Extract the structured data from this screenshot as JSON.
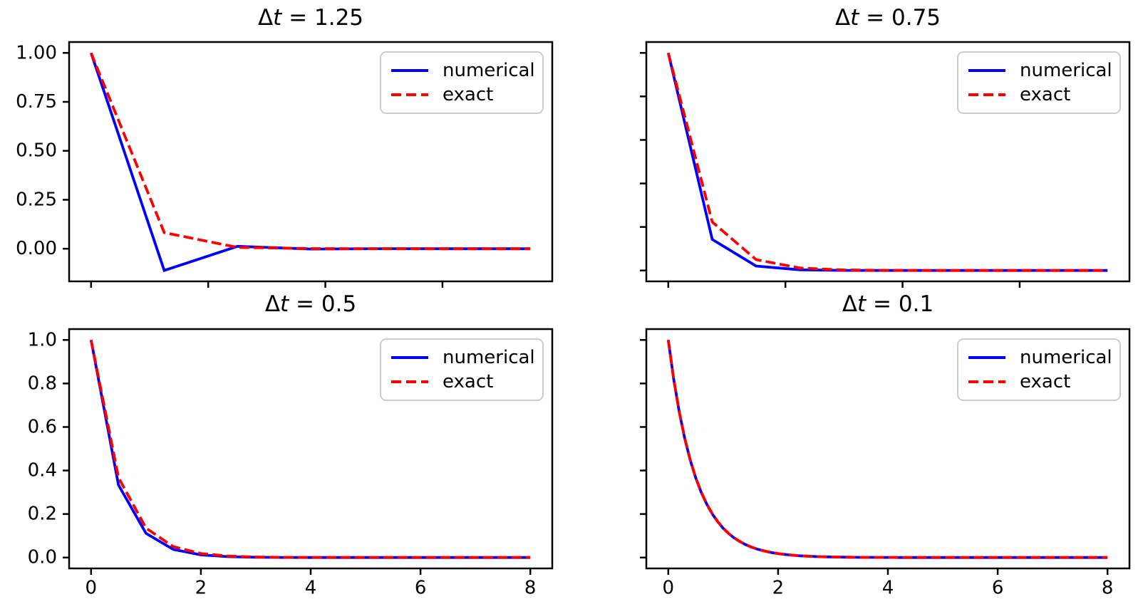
{
  "figure": {
    "background_color": "#ffffff",
    "rows": 2,
    "cols": 2,
    "description": "2x2 grid of line plots comparing a numerical ODE solution to the exact solution for different time steps"
  },
  "palette": {
    "numerical_color": "#0000ff",
    "exact_color": "#ff0000",
    "axis_color": "#000000",
    "legend_border_color": "#cccccc"
  },
  "legend": {
    "position": "upper right",
    "entries": [
      "numerical",
      "exact"
    ]
  },
  "chart_data": [
    {
      "type": "line",
      "id": "dt-1.25",
      "title": "Δt = 1.25",
      "title_delta": "Δ",
      "title_var": "t",
      "title_eq": " = 1.25",
      "dt": 1.25,
      "xlim": [
        -0.375,
        7.875
      ],
      "ylim": [
        -0.1667,
        1.0556
      ],
      "x_ticks": [
        0,
        2,
        4,
        6
      ],
      "x_tick_labels": null,
      "y_ticks": [
        0,
        0.25,
        0.5,
        0.75,
        1.0
      ],
      "y_tick_labels": [
        "0.00",
        "0.25",
        "0.50",
        "0.75",
        "1.00"
      ],
      "grid": false,
      "legend_position": "upper right",
      "t_start": 0,
      "t_step": 1.25,
      "t_end": 7.5,
      "series": [
        {
          "name": "numerical",
          "color": "#0000ff",
          "linestyle": "solid",
          "y": [
            1.0,
            -0.1111,
            0.0123,
            -0.0014,
            0.0002,
            0.0,
            0.0
          ]
        },
        {
          "name": "exact",
          "color": "#ff0000",
          "linestyle": "dashed",
          "y": [
            1.0,
            0.0821,
            0.0067,
            0.0006,
            0.0,
            0.0,
            0.0
          ]
        }
      ]
    },
    {
      "type": "line",
      "id": "dt-0.75",
      "title": "Δt = 0.75",
      "title_delta": "Δ",
      "title_var": "t",
      "title_eq": " = 0.75",
      "dt": 0.75,
      "xlim": [
        -0.375,
        7.875
      ],
      "ylim": [
        -0.05,
        1.05
      ],
      "x_ticks": [
        0,
        2,
        4,
        6
      ],
      "x_tick_labels": null,
      "y_ticks": [
        0,
        0.2,
        0.4,
        0.6,
        0.8,
        1.0
      ],
      "y_tick_labels": null,
      "grid": false,
      "legend_position": "upper right",
      "t_start": 0,
      "t_step": 0.75,
      "t_end": 7.5,
      "series": [
        {
          "name": "numerical",
          "color": "#0000ff",
          "linestyle": "solid",
          "y": [
            1.0,
            0.1429,
            0.0204,
            0.0029,
            0.0004,
            0.0001,
            0.0,
            0.0,
            0.0,
            0.0,
            0.0
          ]
        },
        {
          "name": "exact",
          "color": "#ff0000",
          "linestyle": "dashed",
          "y": [
            1.0,
            0.2231,
            0.0498,
            0.0111,
            0.0025,
            0.0006,
            0.0001,
            0.0,
            0.0,
            0.0,
            0.0
          ]
        }
      ]
    },
    {
      "type": "line",
      "id": "dt-0.5",
      "title": "Δt = 0.5",
      "title_delta": "Δ",
      "title_var": "t",
      "title_eq": " = 0.5",
      "dt": 0.5,
      "xlim": [
        -0.4,
        8.4
      ],
      "ylim": [
        -0.05,
        1.05
      ],
      "x_ticks": [
        0,
        2,
        4,
        6,
        8
      ],
      "x_tick_labels": [
        "0",
        "2",
        "4",
        "6",
        "8"
      ],
      "y_ticks": [
        0,
        0.2,
        0.4,
        0.6,
        0.8,
        1.0
      ],
      "y_tick_labels": [
        "0.0",
        "0.2",
        "0.4",
        "0.6",
        "0.8",
        "1.0"
      ],
      "grid": false,
      "legend_position": "upper right",
      "t_start": 0,
      "t_step": 0.5,
      "t_end": 8.0,
      "series": [
        {
          "name": "numerical",
          "color": "#0000ff",
          "linestyle": "solid",
          "y": [
            1.0,
            0.3333,
            0.1111,
            0.037,
            0.0123,
            0.0041,
            0.0014,
            0.0005,
            0.0002,
            0.0001,
            0.0,
            0.0,
            0.0,
            0.0,
            0.0,
            0.0,
            0.0
          ]
        },
        {
          "name": "exact",
          "color": "#ff0000",
          "linestyle": "dashed",
          "y": [
            1.0,
            0.3679,
            0.1353,
            0.0498,
            0.0183,
            0.0067,
            0.0025,
            0.0009,
            0.0003,
            0.0001,
            0.0,
            0.0,
            0.0,
            0.0,
            0.0,
            0.0,
            0.0
          ]
        }
      ]
    },
    {
      "type": "line",
      "id": "dt-0.1",
      "title": "Δt = 0.1",
      "title_delta": "Δ",
      "title_var": "t",
      "title_eq": " = 0.1",
      "dt": 0.1,
      "xlim": [
        -0.4,
        8.4
      ],
      "ylim": [
        -0.05,
        1.05
      ],
      "x_ticks": [
        0,
        2,
        4,
        6,
        8
      ],
      "x_tick_labels": [
        "0",
        "2",
        "4",
        "6",
        "8"
      ],
      "y_ticks": [
        0,
        0.2,
        0.4,
        0.6,
        0.8,
        1.0
      ],
      "y_tick_labels": null,
      "grid": false,
      "legend_position": "upper right",
      "t_start": 0,
      "t_step": 0.1,
      "t_end": 8.0,
      "series": [
        {
          "name": "numerical",
          "color": "#0000ff",
          "linestyle": "solid",
          "y": [
            1.0,
            0.8182,
            0.6694,
            0.5477,
            0.4481,
            0.3667,
            0.3,
            0.2455,
            0.2008,
            0.1643,
            0.1344,
            0.11,
            0.09,
            0.0736,
            0.0602,
            0.0493,
            0.0403,
            0.033,
            0.027,
            0.0221,
            0.0181,
            0.0148,
            0.0121,
            0.0099,
            0.0081,
            0.0066,
            0.0054,
            0.0044,
            0.0036,
            0.003,
            0.0024,
            0.002,
            0.0016,
            0.0013,
            0.0011,
            0.0009,
            0.0007,
            0.0006,
            0.0005,
            0.0004,
            0.0003,
            0.0003,
            0.0002,
            0.0002,
            0.0001,
            0.0001,
            0.0001,
            0.0001,
            0.0001,
            0,
            0,
            0,
            0,
            0,
            0,
            0,
            0,
            0,
            0,
            0,
            0,
            0,
            0,
            0,
            0,
            0,
            0,
            0,
            0,
            0,
            0,
            0,
            0,
            0,
            0,
            0,
            0,
            0,
            0,
            0,
            0
          ]
        },
        {
          "name": "exact",
          "color": "#ff0000",
          "linestyle": "dashed",
          "y": [
            1.0,
            0.8187,
            0.6703,
            0.5488,
            0.4493,
            0.3679,
            0.3012,
            0.2466,
            0.2019,
            0.1653,
            0.1353,
            0.1108,
            0.0907,
            0.0743,
            0.0608,
            0.0498,
            0.0408,
            0.0334,
            0.0273,
            0.0224,
            0.0183,
            0.015,
            0.0123,
            0.0101,
            0.0082,
            0.0067,
            0.0055,
            0.0045,
            0.0037,
            0.003,
            0.0025,
            0.002,
            0.0017,
            0.0014,
            0.0011,
            0.0009,
            0.0008,
            0.0006,
            0.0005,
            0.0004,
            0.0003,
            0.0003,
            0.0002,
            0.0002,
            0.0002,
            0.0001,
            0.0001,
            0.0001,
            0.0001,
            0.0001,
            0,
            0,
            0,
            0,
            0,
            0,
            0,
            0,
            0,
            0,
            0,
            0,
            0,
            0,
            0,
            0,
            0,
            0,
            0,
            0,
            0,
            0,
            0,
            0,
            0,
            0,
            0,
            0,
            0,
            0,
            0
          ]
        }
      ]
    }
  ]
}
